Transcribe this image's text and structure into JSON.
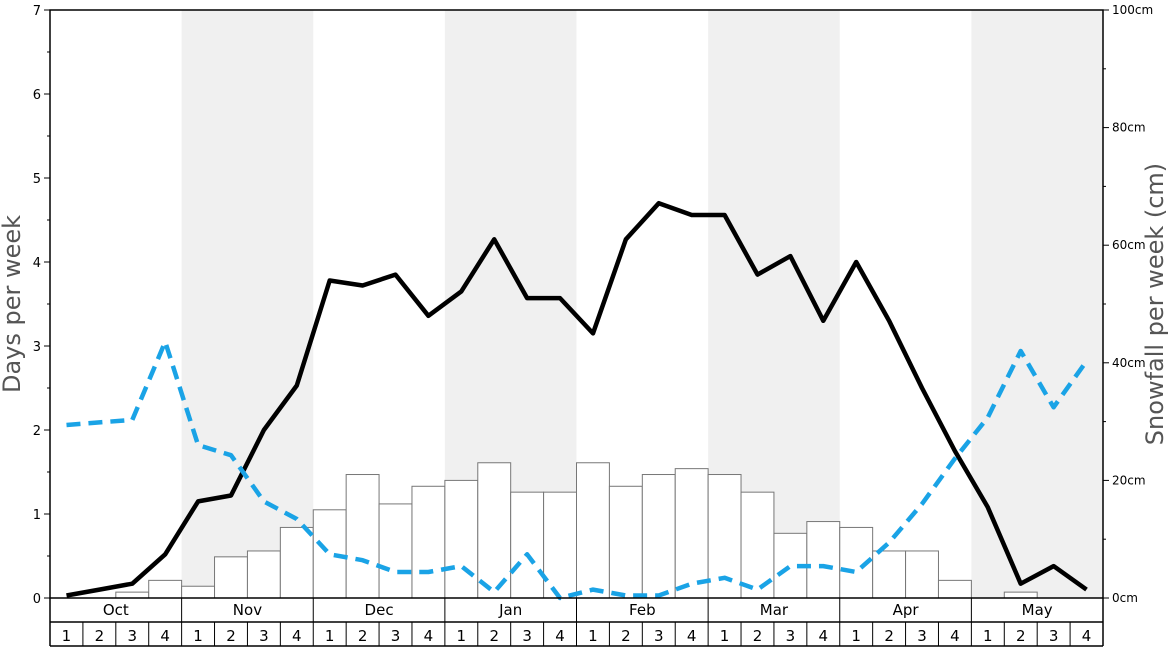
{
  "chart_data": {
    "type": "bar",
    "left_axis": {
      "label": "Days per week",
      "ylim": [
        0,
        7
      ],
      "ticks": [
        "0",
        "1",
        "2",
        "3",
        "4",
        "5",
        "6",
        "7"
      ]
    },
    "right_axis": {
      "label": "Snowfall per week (cm)",
      "ylim": [
        0,
        100
      ],
      "ticks": [
        "0cm",
        "20cm",
        "40cm",
        "60cm",
        "80cm",
        "100cm"
      ]
    },
    "months": [
      "Oct",
      "Nov",
      "Dec",
      "Jan",
      "Feb",
      "Mar",
      "Apr",
      "May"
    ],
    "weeks": [
      "1",
      "2",
      "3",
      "4"
    ],
    "shaded_months": [
      "Nov",
      "Jan",
      "Mar",
      "May"
    ],
    "series": [
      {
        "kind": "bar",
        "axis": "right",
        "values": [
          0,
          0,
          1,
          3,
          2,
          7,
          8,
          12,
          15,
          21,
          16,
          19,
          20,
          23,
          18,
          18,
          23,
          19,
          21,
          22,
          21,
          18,
          11,
          13,
          12,
          8,
          8,
          3,
          0,
          1,
          0,
          0
        ]
      },
      {
        "kind": "line",
        "axis": "left",
        "color": "#000000",
        "values": [
          0.03,
          0.1,
          0.17,
          0.52,
          1.15,
          1.22,
          2.0,
          2.53,
          3.78,
          3.72,
          3.85,
          3.36,
          3.65,
          4.27,
          3.57,
          3.57,
          3.15,
          4.27,
          4.7,
          4.56,
          4.56,
          3.85,
          4.07,
          3.3,
          4.0,
          3.3,
          2.5,
          1.75,
          1.08,
          0.17,
          0.38,
          0.1
        ]
      },
      {
        "kind": "dashed-line",
        "axis": "left",
        "color": "#1aa3e6",
        "values": [
          2.06,
          2.09,
          2.12,
          3.05,
          1.82,
          1.7,
          1.15,
          0.94,
          0.52,
          0.45,
          0.31,
          0.31,
          0.38,
          0.07,
          0.52,
          0.0,
          0.1,
          0.03,
          0.03,
          0.17,
          0.24,
          0.1,
          0.38,
          0.38,
          0.31,
          0.66,
          1.12,
          1.66,
          2.15,
          2.94,
          2.27,
          2.82
        ]
      }
    ]
  }
}
